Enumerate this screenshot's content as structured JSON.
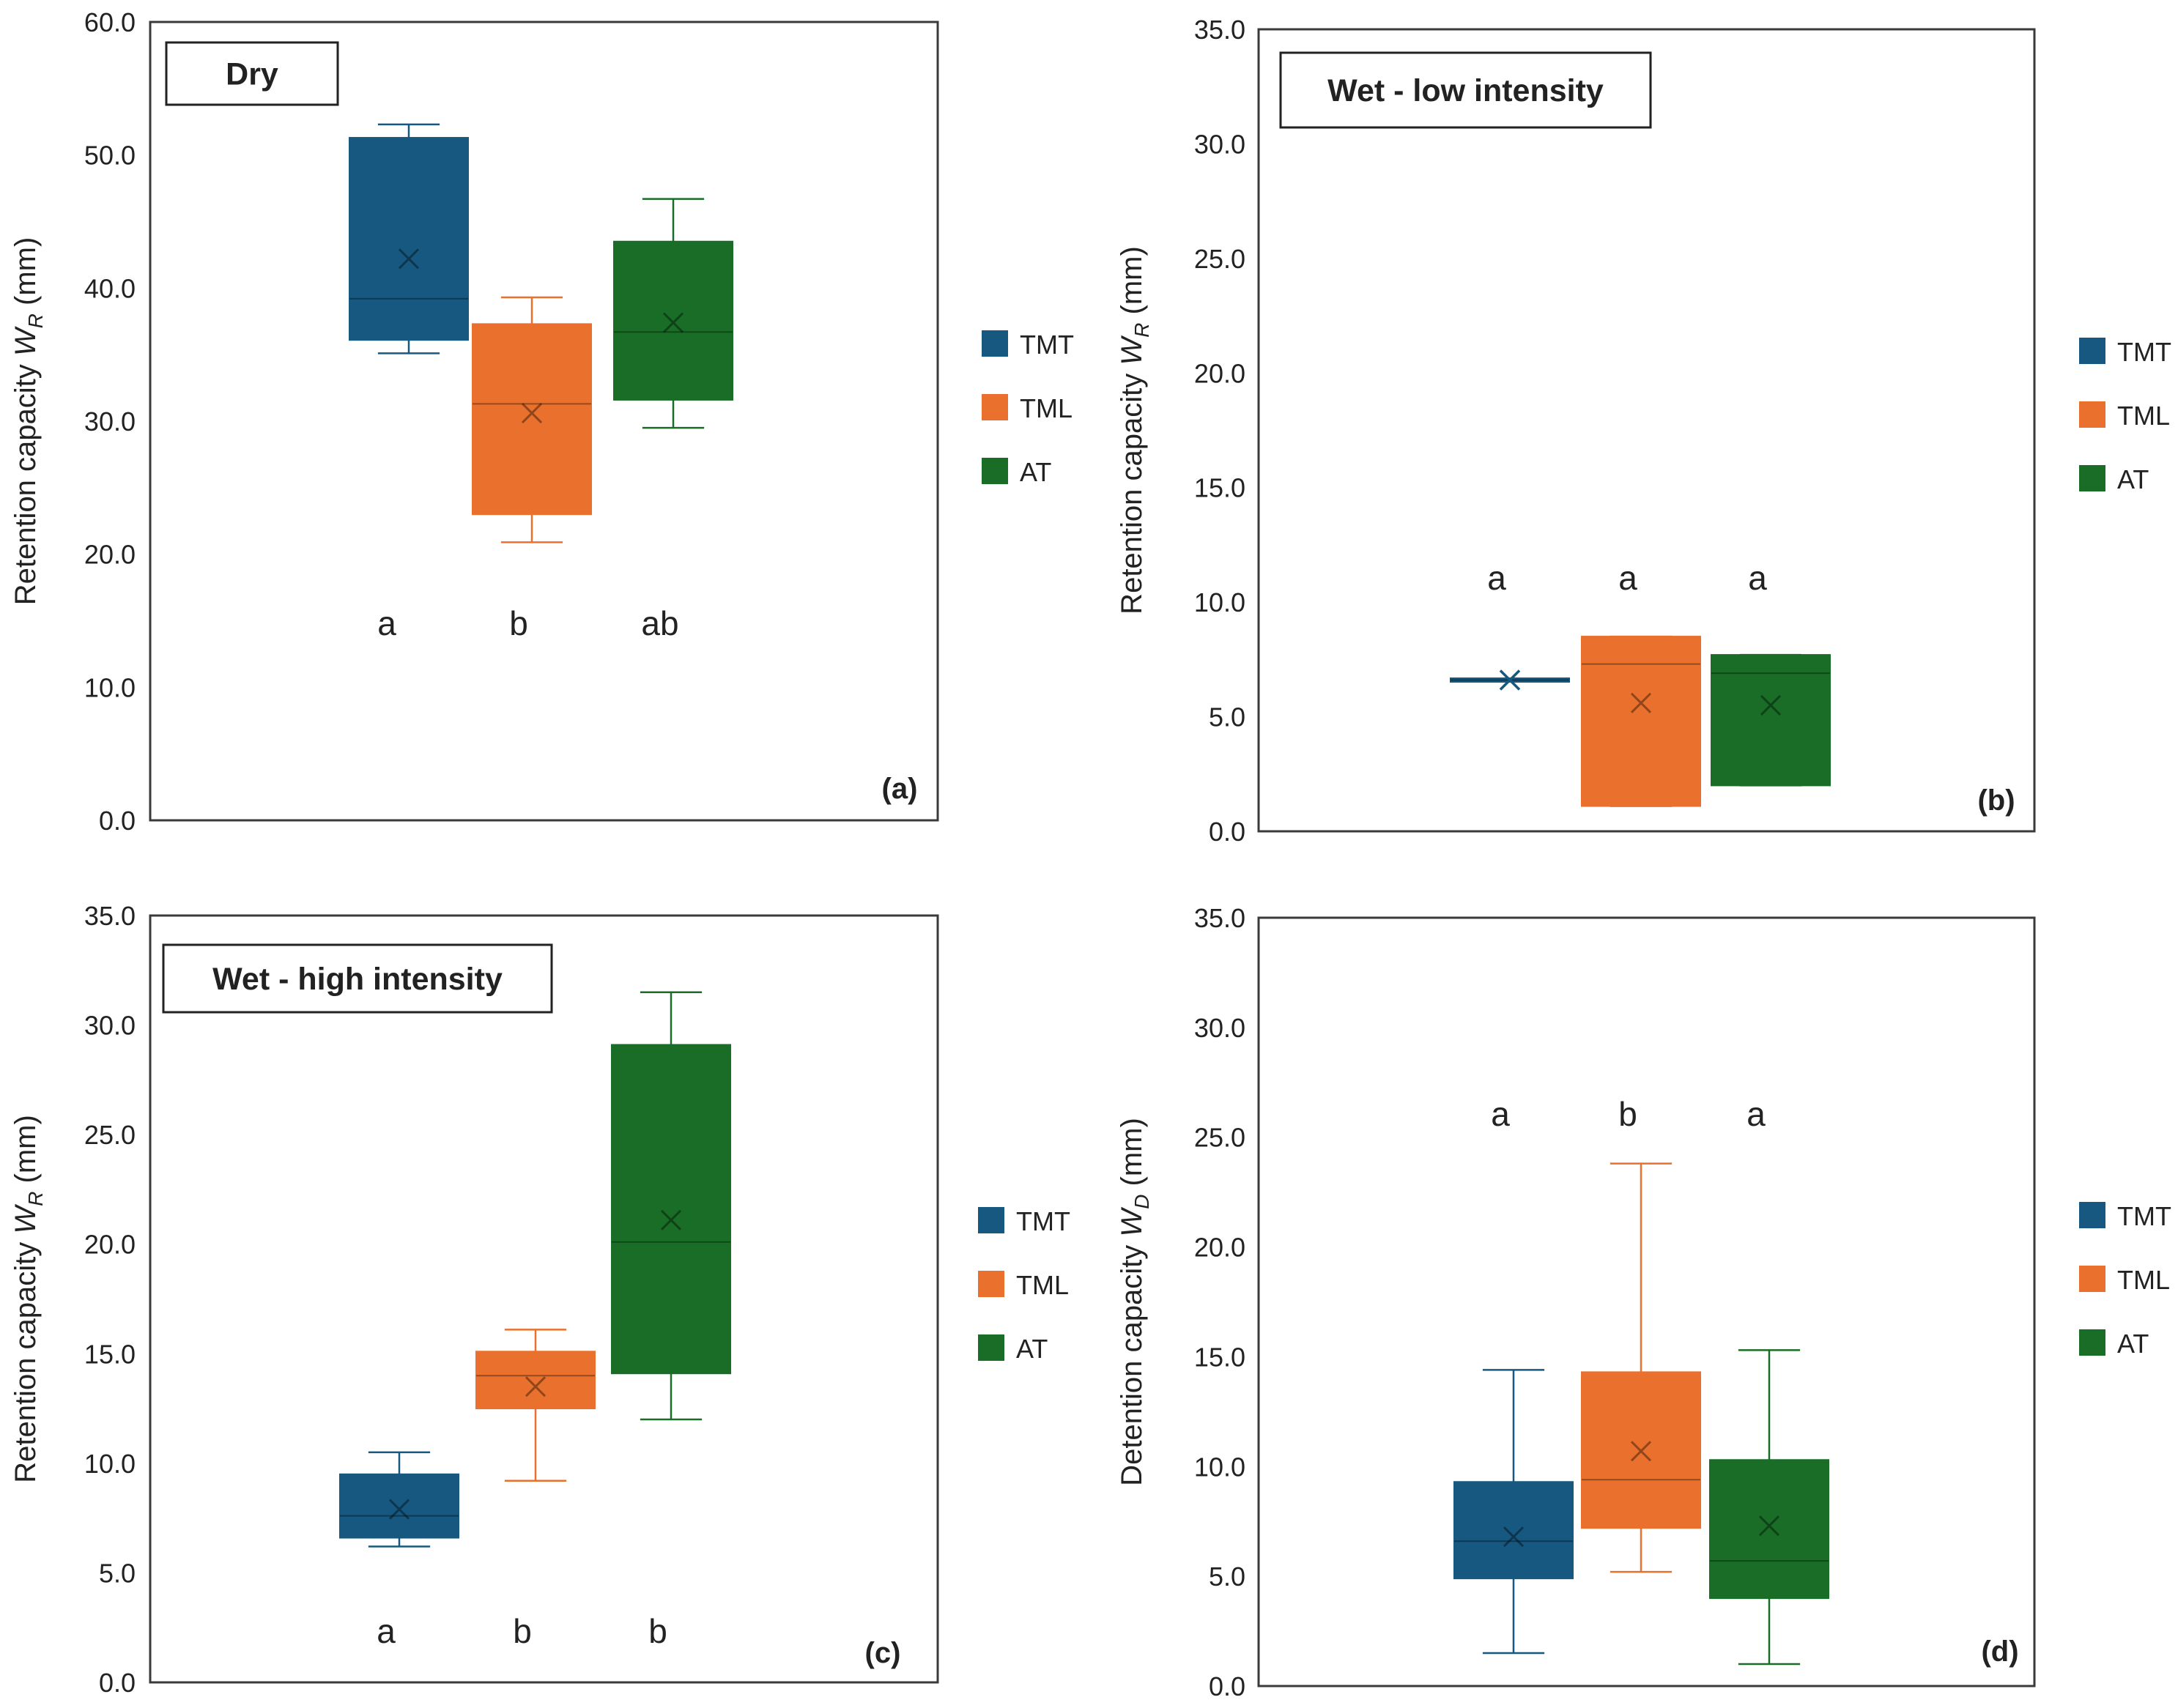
{
  "colors": {
    "TMT": "#16587f",
    "TML": "#e9702d",
    "AT": "#196d26"
  },
  "chart_data": [
    {
      "type": "box",
      "panel": "(a)",
      "title": "Dry",
      "ylabel_main": "Retention capacity ",
      "ylabel_var": "W",
      "ylabel_sub": "R",
      "ylabel_unit": " (mm)",
      "ylim": [
        0,
        60
      ],
      "yticks": [
        "0.0",
        "10.0",
        "20.0",
        "30.0",
        "40.0",
        "50.0",
        "60.0"
      ],
      "legend": [
        "TMT",
        "TML",
        "AT"
      ],
      "series": [
        {
          "name": "TMT",
          "min": 35.1,
          "q1": 36.1,
          "median": 39.2,
          "q3": 51.3,
          "max": 52.3,
          "mean": 42.2,
          "letter": "a"
        },
        {
          "name": "TML",
          "min": 20.9,
          "q1": 23.0,
          "median": 31.3,
          "q3": 37.3,
          "max": 39.3,
          "mean": 30.6,
          "letter": "b"
        },
        {
          "name": "AT",
          "min": 29.5,
          "q1": 31.6,
          "median": 36.7,
          "q3": 43.5,
          "max": 46.7,
          "mean": 37.4,
          "letter": "ab"
        }
      ]
    },
    {
      "type": "box",
      "panel": "(b)",
      "title": "Wet - low intensity",
      "ylabel_main": "Retention capacity ",
      "ylabel_var": "W",
      "ylabel_sub": "R",
      "ylabel_unit": " (mm)",
      "ylim": [
        0,
        35
      ],
      "yticks": [
        "0.0",
        "5.0",
        "10.0",
        "15.0",
        "20.0",
        "25.0",
        "30.0",
        "35.0"
      ],
      "legend": [
        "TMT",
        "TML",
        "AT"
      ],
      "series": [
        {
          "name": "TMT",
          "min": 6.6,
          "q1": 6.6,
          "median": 6.6,
          "q3": 6.6,
          "max": 6.6,
          "mean": 6.6,
          "letter": "a"
        },
        {
          "name": "TML",
          "min": 1.1,
          "q1": 1.1,
          "median": 7.3,
          "q3": 8.5,
          "max": 8.5,
          "mean": 5.6,
          "letter": "a"
        },
        {
          "name": "AT",
          "min": 2.0,
          "q1": 2.0,
          "median": 6.9,
          "q3": 7.7,
          "max": 7.7,
          "mean": 5.5,
          "letter": "a"
        }
      ]
    },
    {
      "type": "box",
      "panel": "(c)",
      "title": "Wet - high intensity",
      "ylabel_main": "Retention capacity ",
      "ylabel_var": "W",
      "ylabel_sub": "R",
      "ylabel_unit": " (mm)",
      "ylim": [
        0,
        35
      ],
      "yticks": [
        "0.0",
        "5.0",
        "10.0",
        "15.0",
        "20.0",
        "25.0",
        "30.0",
        "35.0"
      ],
      "legend": [
        "TMT",
        "TML",
        "AT"
      ],
      "series": [
        {
          "name": "TMT",
          "min": 6.2,
          "q1": 6.6,
          "median": 7.6,
          "q3": 9.5,
          "max": 10.5,
          "mean": 7.9,
          "letter": "a"
        },
        {
          "name": "TML",
          "min": 9.2,
          "q1": 12.5,
          "median": 14.0,
          "q3": 15.1,
          "max": 16.1,
          "mean": 13.5,
          "letter": "b"
        },
        {
          "name": "AT",
          "min": 12.0,
          "q1": 14.1,
          "median": 20.1,
          "q3": 29.1,
          "max": 31.5,
          "mean": 21.1,
          "letter": "b"
        }
      ]
    },
    {
      "type": "box",
      "panel": "(d)",
      "title": "",
      "ylabel_main": "Detention capacity ",
      "ylabel_var": "W",
      "ylabel_sub": "D",
      "ylabel_unit": " (mm)",
      "ylim": [
        0,
        35
      ],
      "yticks": [
        "0.0",
        "5.0",
        "10.0",
        "15.0",
        "20.0",
        "25.0",
        "30.0",
        "35.0"
      ],
      "legend": [
        "TMT",
        "TML",
        "AT"
      ],
      "series": [
        {
          "name": "TMT",
          "min": 1.5,
          "q1": 4.9,
          "median": 6.6,
          "q3": 9.3,
          "max": 14.4,
          "mean": 6.8,
          "letter": "a"
        },
        {
          "name": "TML",
          "min": 5.2,
          "q1": 7.2,
          "median": 9.4,
          "q3": 14.3,
          "max": 23.8,
          "mean": 10.7,
          "letter": "b"
        },
        {
          "name": "AT",
          "min": 1.0,
          "q1": 4.0,
          "median": 5.7,
          "q3": 10.3,
          "max": 15.3,
          "mean": 7.3,
          "letter": "a"
        }
      ]
    }
  ]
}
